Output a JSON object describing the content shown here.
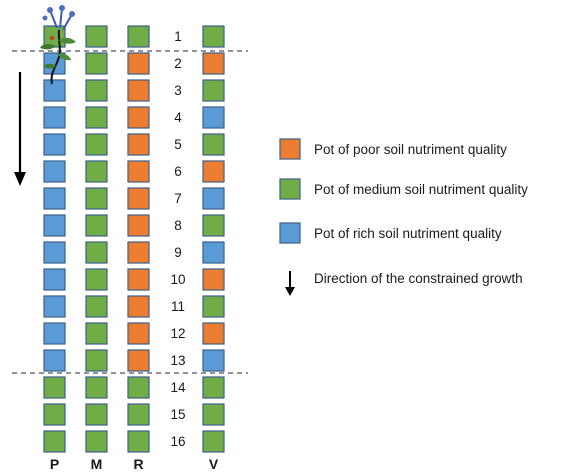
{
  "colors": {
    "poor": "#ed7d31",
    "medium": "#70ad47",
    "rich": "#5b9bd5",
    "border": "#3e5f8a"
  },
  "columns": [
    {
      "label": "P",
      "pots": [
        "medium",
        "rich",
        "rich",
        "rich",
        "rich",
        "rich",
        "rich",
        "rich",
        "rich",
        "rich",
        "rich",
        "rich",
        "rich",
        "medium",
        "medium",
        "medium"
      ]
    },
    {
      "label": "M",
      "pots": [
        "medium",
        "medium",
        "medium",
        "medium",
        "medium",
        "medium",
        "medium",
        "medium",
        "medium",
        "medium",
        "medium",
        "medium",
        "medium",
        "medium",
        "medium",
        "medium"
      ]
    },
    {
      "label": "R",
      "pots": [
        "medium",
        "poor",
        "poor",
        "poor",
        "poor",
        "poor",
        "poor",
        "poor",
        "poor",
        "poor",
        "poor",
        "poor",
        "poor",
        "medium",
        "medium",
        "medium"
      ]
    },
    {
      "label": "V",
      "pots": [
        "medium",
        "poor",
        "medium",
        "rich",
        "medium",
        "poor",
        "rich",
        "medium",
        "rich",
        "poor",
        "medium",
        "poor",
        "rich",
        "medium",
        "medium",
        "medium"
      ]
    }
  ],
  "row_numbers": [
    "1",
    "2",
    "3",
    "4",
    "5",
    "6",
    "7",
    "8",
    "9",
    "10",
    "11",
    "12",
    "13",
    "14",
    "15",
    "16"
  ],
  "legend": [
    {
      "swatch": "poor",
      "text": "Pot of poor soil nutriment quality"
    },
    {
      "swatch": "medium",
      "text": "Pot of medium soil nutriment quality"
    },
    {
      "swatch": "rich",
      "text": "Pot of rich soil nutriment quality"
    },
    {
      "icon": "down-arrow-icon",
      "text": "Direction of the constrained growth"
    }
  ],
  "plant_icon": "plant-icon",
  "growth_arrow_icon": "down-arrow-icon"
}
